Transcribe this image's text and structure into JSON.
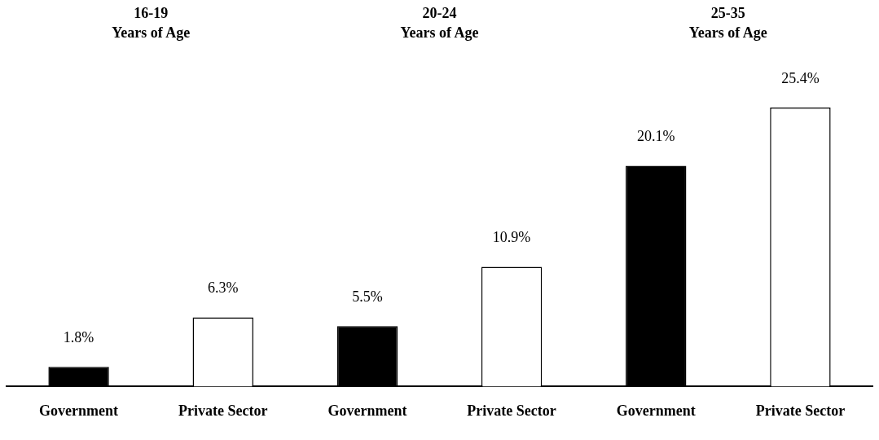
{
  "chart_data": {
    "type": "bar",
    "categories": [
      "Government",
      "Private Sector",
      "Government",
      "Private Sector",
      "Government",
      "Private Sector"
    ],
    "values": [
      1.8,
      6.3,
      5.5,
      10.9,
      20.1,
      25.4
    ],
    "colors": [
      "#000000",
      "#ffffff",
      "#000000",
      "#ffffff",
      "#000000",
      "#ffffff"
    ],
    "value_labels": [
      "1.8%",
      "6.3%",
      "5.5%",
      "10.9%",
      "20.1%",
      "25.4%"
    ],
    "annotations": [
      "16-19\nYears of Age",
      "20-24\nYears of Age",
      "25-35\nYears of Age"
    ],
    "grid": false,
    "legend": false
  }
}
